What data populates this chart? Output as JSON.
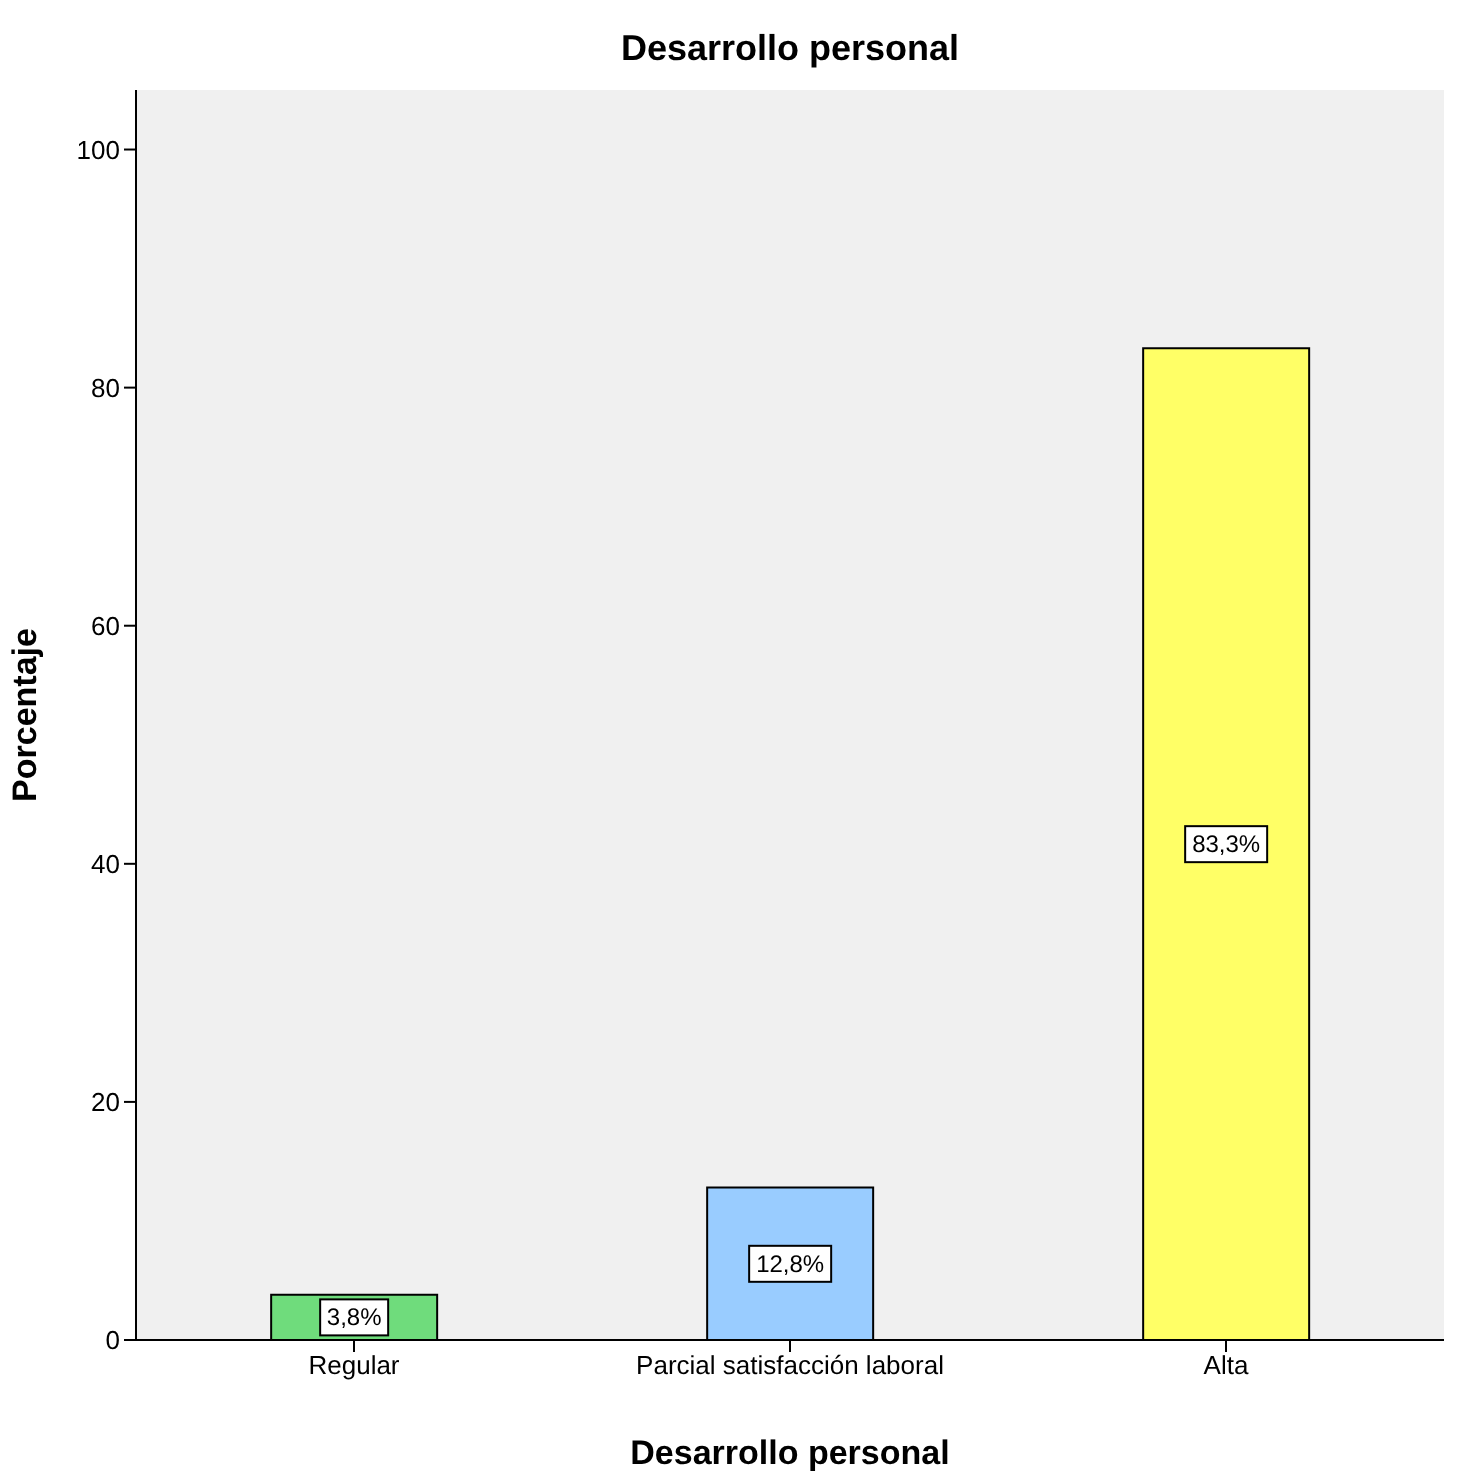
{
  "chart_data": {
    "type": "bar",
    "title": "Desarrollo personal",
    "xlabel": "Desarrollo personal",
    "ylabel": "Porcentaje",
    "categories": [
      "Regular",
      "Parcial satisfacción laboral",
      "Alta"
    ],
    "values": [
      3.8,
      12.8,
      83.3
    ],
    "colors": [
      "#6fdc7c",
      "#99ccff",
      "#ffff66"
    ],
    "value_labels": [
      "3,8%",
      "12,8%",
      "83,3%"
    ],
    "ylim": [
      0,
      105
    ],
    "yticks": [
      0,
      20,
      40,
      60,
      80,
      100
    ],
    "grid": false,
    "legend": false
  }
}
